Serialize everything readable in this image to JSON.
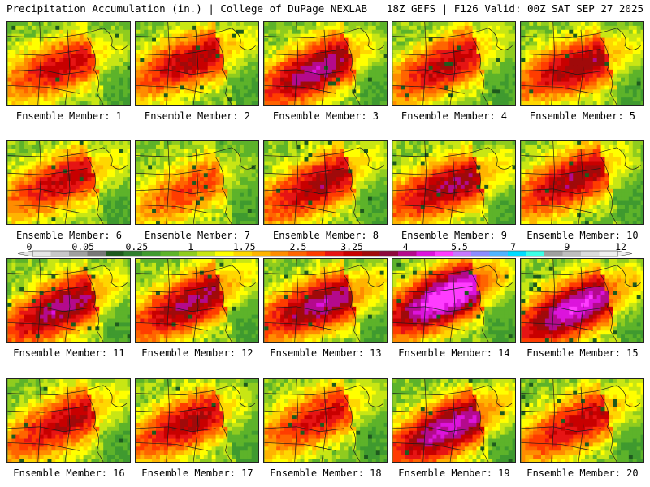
{
  "header": {
    "title_left": "Precipitation Accumulation (in.) | College of DuPage NEXLAB",
    "title_right": "18Z GEFS | F126 Valid: 00Z SAT SEP 27 2025"
  },
  "panels": [
    {
      "label": "Ensemble Member: 1",
      "intensity": 2.6
    },
    {
      "label": "Ensemble Member: 2",
      "intensity": 2.9
    },
    {
      "label": "Ensemble Member: 3",
      "intensity": 3.6
    },
    {
      "label": "Ensemble Member: 4",
      "intensity": 2.8
    },
    {
      "label": "Ensemble Member: 5",
      "intensity": 3.1
    },
    {
      "label": "Ensemble Member: 6",
      "intensity": 2.7
    },
    {
      "label": "Ensemble Member: 7",
      "intensity": 1.9
    },
    {
      "label": "Ensemble Member: 8",
      "intensity": 3.0
    },
    {
      "label": "Ensemble Member: 9",
      "intensity": 3.2
    },
    {
      "label": "Ensemble Member: 10",
      "intensity": 3.1
    },
    {
      "label": "Ensemble Member: 11",
      "intensity": 3.5
    },
    {
      "label": "Ensemble Member: 12",
      "intensity": 3.3
    },
    {
      "label": "Ensemble Member: 13",
      "intensity": 3.6
    },
    {
      "label": "Ensemble Member: 14",
      "intensity": 4.8
    },
    {
      "label": "Ensemble Member: 15",
      "intensity": 4.2
    },
    {
      "label": "Ensemble Member: 16",
      "intensity": 2.8
    },
    {
      "label": "Ensemble Member: 17",
      "intensity": 2.9
    },
    {
      "label": "Ensemble Member: 18",
      "intensity": 2.5
    },
    {
      "label": "Ensemble Member: 19",
      "intensity": 3.9
    },
    {
      "label": "Ensemble Member: 20",
      "intensity": 2.7
    }
  ],
  "legend": {
    "tick_labels": [
      "0",
      "0.05",
      "0.25",
      "1",
      "1.75",
      "2.5",
      "3.25",
      "4",
      "5.5",
      "7",
      "9",
      "12"
    ],
    "colors": [
      "#e6e6e6",
      "#c8c8c8",
      "#a0a0a0",
      "#787878",
      "#1e5a1e",
      "#2e7d2e",
      "#3f9a2f",
      "#5db32a",
      "#8fcc1f",
      "#c8e614",
      "#ffff00",
      "#ffd700",
      "#ffb400",
      "#ff8c00",
      "#ff6400",
      "#ff3c00",
      "#e61414",
      "#c80000",
      "#a00a0a",
      "#8c0a3c",
      "#b40a8c",
      "#dc14dc",
      "#ff3cff",
      "#c878ff",
      "#8c8cff",
      "#50b4ff",
      "#00dcff",
      "#3cffe6",
      "#a0a0a0",
      "#bebebe",
      "#dcdcdc",
      "#f0f0f0"
    ]
  }
}
